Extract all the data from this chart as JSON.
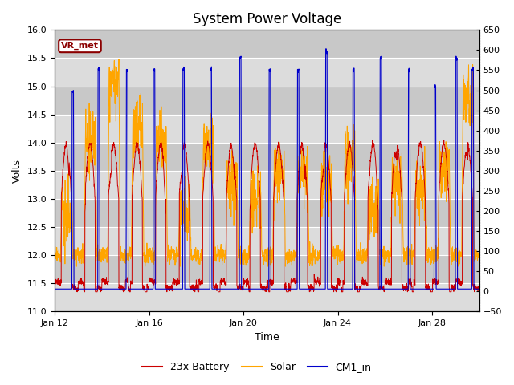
{
  "title": "System Power Voltage",
  "xlabel": "Time",
  "ylabel": "Volts",
  "ylim_left": [
    11.0,
    16.0
  ],
  "ylim_right": [
    -50,
    650
  ],
  "yticks_left": [
    11.0,
    11.5,
    12.0,
    12.5,
    13.0,
    13.5,
    14.0,
    14.5,
    15.0,
    15.5,
    16.0
  ],
  "yticks_right": [
    -50,
    0,
    50,
    100,
    150,
    200,
    250,
    300,
    350,
    400,
    450,
    500,
    550,
    600,
    650
  ],
  "xtick_labels": [
    "Jan 12",
    "Jan 16",
    "Jan 20",
    "Jan 24",
    "Jan 28"
  ],
  "xtick_positions": [
    0,
    4,
    8,
    12,
    16
  ],
  "xlim": [
    0,
    18
  ],
  "legend_labels": [
    "23x Battery",
    "Solar",
    "CM1_in"
  ],
  "legend_colors": [
    "#CC0000",
    "#FFA500",
    "#0000CC"
  ],
  "vr_met_label": "VR_met",
  "vr_met_color": "#8B0000",
  "plot_bg": "#DCDCDC",
  "hspan1_lo": 14.5,
  "hspan1_hi": 16.0,
  "hspan2_lo": 11.0,
  "hspan2_hi": 11.5,
  "hspan_color": "#C8C8C8",
  "title_fontsize": 12,
  "axis_fontsize": 9,
  "tick_fontsize": 8,
  "seed": 7
}
